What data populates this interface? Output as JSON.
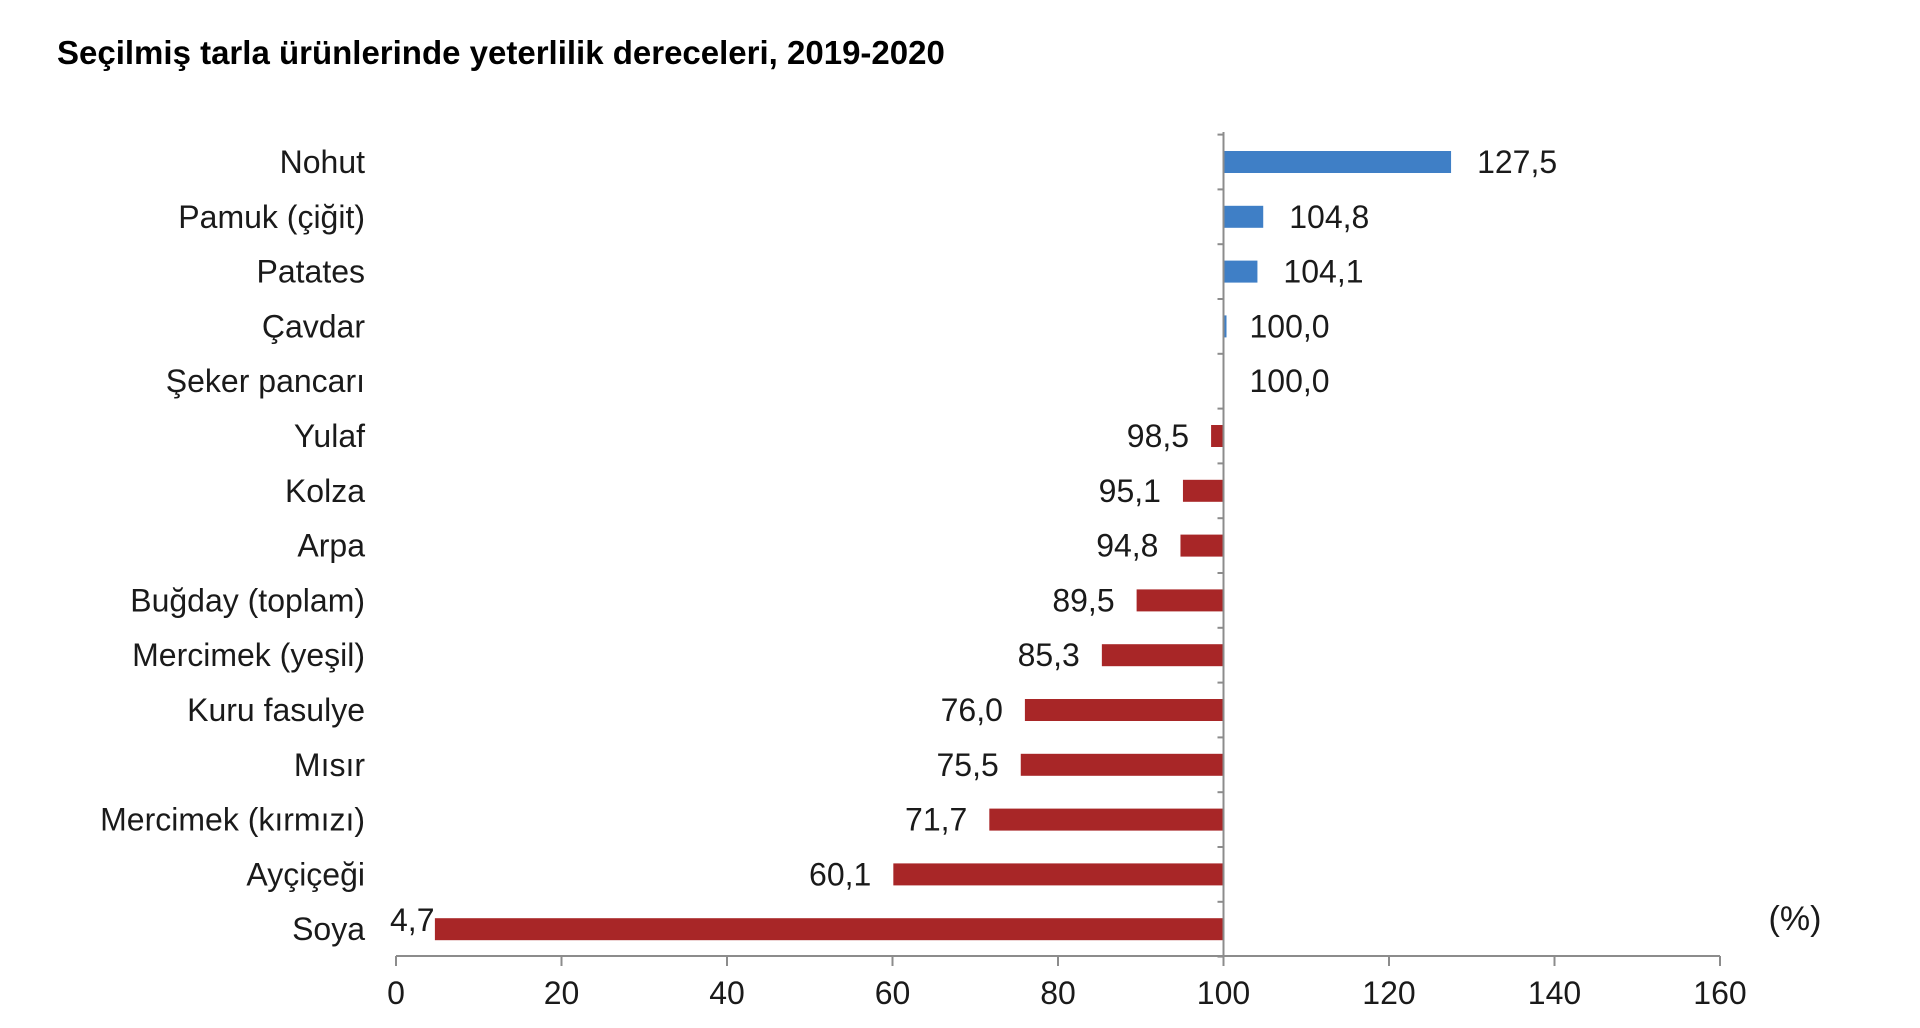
{
  "title": "Seçilmiş tarla ürünlerinde yeterlilik dereceleri, 2019-2020",
  "chart_data": {
    "type": "bar",
    "orientation": "horizontal",
    "baseline": 100,
    "categories": [
      "Nohut",
      "Pamuk (çiğit)",
      "Patates",
      "Çavdar",
      "Şeker pancarı",
      "Yulaf",
      "Kolza",
      "Arpa",
      "Buğday (toplam)",
      "Mercimek (yeşil)",
      "Kuru fasulye",
      "Mısır",
      "Mercimek (kırmızı)",
      "Ayçiçeği",
      "Soya"
    ],
    "values": [
      127.5,
      104.8,
      104.1,
      100.0,
      100.0,
      98.5,
      95.1,
      94.8,
      89.5,
      85.3,
      76.0,
      75.5,
      71.7,
      60.1,
      4.7
    ],
    "value_labels": [
      "127,5",
      "104,8",
      "104,1",
      "100,0",
      "100,0",
      "98,5",
      "95,1",
      "94,8",
      "89,5",
      "85,3",
      "76,0",
      "75,5",
      "71,7",
      "60,1",
      "4,7"
    ],
    "xlim": [
      0,
      160
    ],
    "xticks": [
      0,
      20,
      40,
      60,
      80,
      100,
      120,
      140,
      160
    ],
    "xlabel": "",
    "ylabel": "",
    "unit_label": "(%)",
    "grid": false,
    "colors": {
      "above": "#3f7fc6",
      "below": "#a82627"
    }
  }
}
